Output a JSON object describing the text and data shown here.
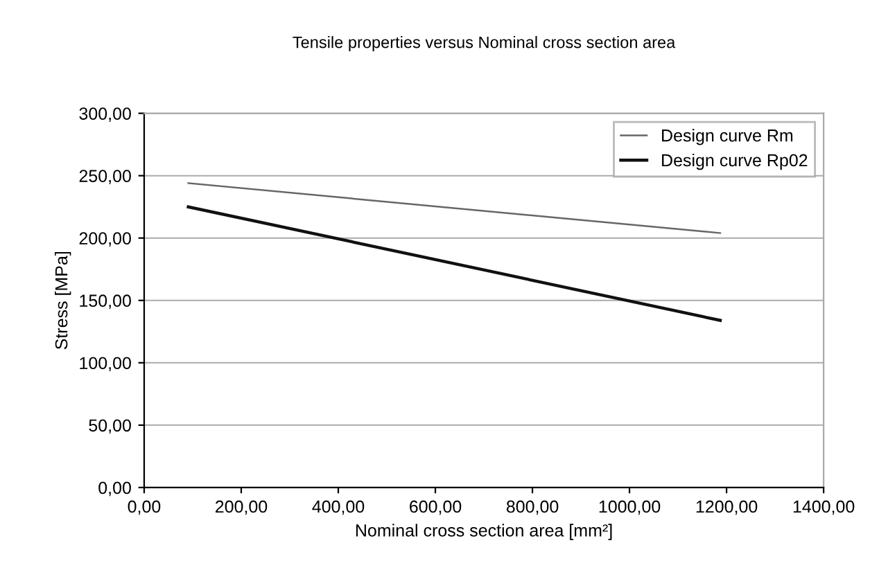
{
  "chart_data": {
    "type": "line",
    "title": "Tensile properties versus Nominal cross section area",
    "xlabel": "Nominal cross section area [mm²]",
    "ylabel": "Stress [MPa]",
    "series": [
      {
        "name": "Design curve Rm",
        "color": "#666666",
        "values": [
          244,
          204
        ]
      },
      {
        "name": "Design curve Rp02",
        "color": "#111111",
        "values": [
          225,
          134
        ]
      }
    ],
    "x": [
      91,
      1187
    ],
    "xlim": [
      0,
      1400
    ],
    "ylim": [
      0,
      300
    ],
    "xticks": [
      {
        "value": 0,
        "label": "0,00"
      },
      {
        "value": 200,
        "label": "200,00"
      },
      {
        "value": 400,
        "label": "400,00"
      },
      {
        "value": 600,
        "label": "600,00"
      },
      {
        "value": 800,
        "label": "800,00"
      },
      {
        "value": 1000,
        "label": "1000,00"
      },
      {
        "value": 1200,
        "label": "1200,00"
      },
      {
        "value": 1400,
        "label": "1400,00"
      }
    ],
    "yticks": [
      {
        "value": 0,
        "label": "0,00"
      },
      {
        "value": 50,
        "label": "50,00"
      },
      {
        "value": 100,
        "label": "100,00"
      },
      {
        "value": 150,
        "label": "150,00"
      },
      {
        "value": 200,
        "label": "200,00"
      },
      {
        "value": 250,
        "label": "250,00"
      },
      {
        "value": 300,
        "label": "300,00"
      }
    ],
    "grid": "y",
    "legend": "top right",
    "marker": "none",
    "line_style": "solid"
  }
}
